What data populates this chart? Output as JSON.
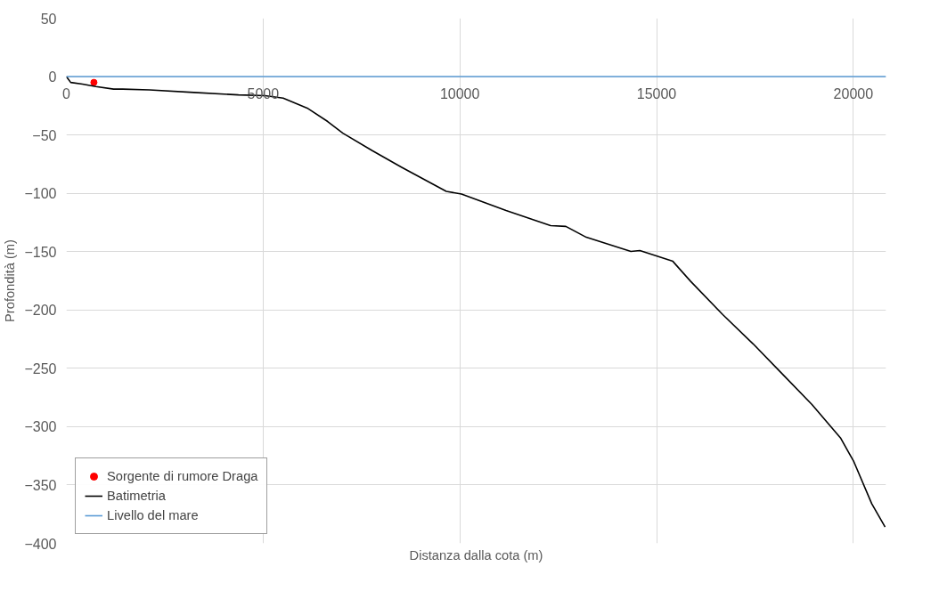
{
  "chart_data": {
    "type": "line",
    "xlabel": "Distanza dalla cota (m)",
    "ylabel": "Profondità (m)",
    "xlim": [
      0,
      20830
    ],
    "ylim": [
      -400,
      50
    ],
    "xticks": [
      0,
      5000,
      10000,
      15000,
      20000
    ],
    "yticks": [
      -400,
      -350,
      -300,
      -250,
      -200,
      -150,
      -100,
      -50,
      0,
      50
    ],
    "grid": true,
    "legend": "bottom left",
    "series": [
      {
        "name": "Sorgente di rumore Draga",
        "type": "scatter",
        "marker": "circle",
        "color": "#ff0000",
        "x": [
          700
        ],
        "values": [
          -5
        ]
      },
      {
        "name": "Batimetria",
        "color": "#000000",
        "x": [
          0,
          110,
          410,
          750,
          1200,
          1430,
          2110,
          3240,
          4374,
          5050,
          5510,
          6120,
          6641,
          7026,
          7774,
          8522,
          9655,
          10041,
          11174,
          12307,
          12693,
          13214,
          14347,
          14574,
          15413,
          15866,
          16682,
          17452,
          18200,
          18948,
          19673,
          20013,
          20467,
          20807
        ],
        "values": [
          0,
          -5,
          -6.4,
          -8.6,
          -10.7,
          -10.7,
          -11.4,
          -13.6,
          -15.7,
          -16.4,
          -18.5,
          -27,
          -38.5,
          -48.5,
          -63.5,
          -77.7,
          -98.4,
          -100.6,
          -114.8,
          -127.7,
          -128.4,
          -137.7,
          -149.8,
          -149.1,
          -158.3,
          -175.5,
          -204,
          -229,
          -255,
          -281,
          -309.6,
          -330,
          -366,
          -386
        ]
      },
      {
        "name": "Livello del mare",
        "color": "#5b9bd5",
        "x": [
          0,
          20830
        ],
        "values": [
          0,
          0
        ]
      }
    ]
  }
}
